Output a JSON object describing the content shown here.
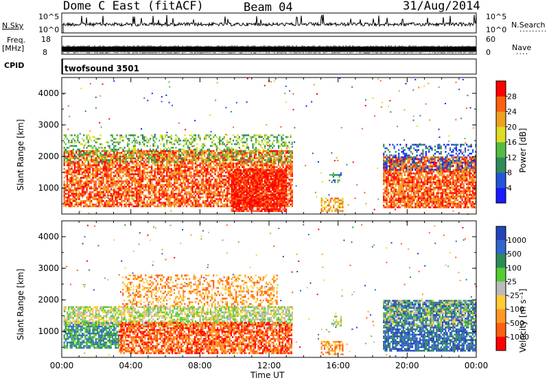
{
  "header": {
    "station": "Dome C East (fitACF)",
    "beam": "Beam 04",
    "date": "31/Aug/2014"
  },
  "top_panels": {
    "nsky_label": "N.Sky",
    "nsky_hi": "10^5",
    "nsky_lo": "10^0",
    "nsearch_hi": "10^5",
    "nsearch_lo": "10^0",
    "nsearch_label": "N.Search",
    "freq_label": "Freq.",
    "freq_unit": "[MHz]",
    "freq_hi": "18",
    "freq_lo": "8",
    "nave_hi": "60",
    "nave_lo": "0",
    "nave_label": "Nave",
    "cpid_label": "CPID",
    "cpid_value": "twofsound 3501"
  },
  "chart_data": [
    {
      "type": "heatmap",
      "name": "power",
      "ylabel": "Slant Range [km]",
      "yticks": [
        1000,
        2000,
        3000,
        4000
      ],
      "ylim": [
        180,
        4500
      ],
      "xlim_hours": [
        0,
        24
      ],
      "colorbar": {
        "label": "Power [dB]",
        "ticks": [
          "4",
          "8",
          "12",
          "16",
          "20",
          "24",
          "28"
        ],
        "colors": [
          "#1a1aff",
          "#2255dd",
          "#2f8a5a",
          "#55bb44",
          "#dddd22",
          "#f0a020",
          "#ff6010",
          "#ff0000"
        ]
      },
      "regions": [
        {
          "t0": 0.1,
          "t1": 13.3,
          "r0": 400,
          "r1": 2200,
          "level": 6,
          "density": 0.75
        },
        {
          "t0": 0.1,
          "t1": 13.3,
          "r0": 1800,
          "r1": 2700,
          "level": 3,
          "density": 0.35
        },
        {
          "t0": 9.8,
          "t1": 13.0,
          "r0": 300,
          "r1": 1600,
          "level": 7,
          "density": 0.85
        },
        {
          "t0": 15.0,
          "t1": 16.3,
          "r0": 300,
          "r1": 700,
          "level": 5,
          "density": 0.5
        },
        {
          "t0": 15.6,
          "t1": 16.2,
          "r0": 1200,
          "r1": 1500,
          "level": 2,
          "density": 0.5
        },
        {
          "t0": 18.6,
          "t1": 24.0,
          "r0": 400,
          "r1": 2000,
          "level": 6,
          "density": 0.8
        },
        {
          "t0": 18.6,
          "t1": 24.0,
          "r0": 1600,
          "r1": 2400,
          "level": 1,
          "density": 0.35
        }
      ]
    },
    {
      "type": "heatmap",
      "name": "velocity",
      "ylabel": "Slant Range [km]",
      "yticks": [
        1000,
        2000,
        3000,
        4000
      ],
      "ylim": [
        180,
        4500
      ],
      "xlim_hours": [
        0,
        24
      ],
      "xticks": [
        "00:00",
        "04:00",
        "08:00",
        "12:00",
        "16:00",
        "20:00",
        "00:00"
      ],
      "xlabel": "Time UT",
      "colorbar": {
        "label": "Velocity [m s⁻¹]",
        "ticks": [
          "1000",
          "500",
          "100",
          "25",
          "-25",
          "-100",
          "-500",
          "-1000"
        ],
        "colors": [
          "#2244bb",
          "#3366cc",
          "#2e8b57",
          "#55cc33",
          "#bbbbbb",
          "#ffcc33",
          "#ff9922",
          "#ff6010",
          "#ff0000"
        ]
      },
      "regions": [
        {
          "t0": 0.1,
          "t1": 3.3,
          "r0": 500,
          "r1": 1300,
          "level": 2,
          "density": 0.8
        },
        {
          "t0": 0.1,
          "t1": 13.3,
          "r0": 1200,
          "r1": 1800,
          "level": 4,
          "density": 0.7
        },
        {
          "t0": 3.3,
          "t1": 13.3,
          "r0": 300,
          "r1": 1300,
          "level": 7,
          "density": 0.75
        },
        {
          "t0": 3.5,
          "t1": 12.5,
          "r0": 1800,
          "r1": 2800,
          "level": 6,
          "density": 0.35
        },
        {
          "t0": 15.0,
          "t1": 16.3,
          "r0": 300,
          "r1": 700,
          "level": 6,
          "density": 0.5
        },
        {
          "t0": 15.6,
          "t1": 16.2,
          "r0": 1200,
          "r1": 1500,
          "level": 4,
          "density": 0.5
        },
        {
          "t0": 18.6,
          "t1": 24.0,
          "r0": 400,
          "r1": 2000,
          "level": 1,
          "density": 0.8
        },
        {
          "t0": 18.6,
          "t1": 24.0,
          "r0": 1200,
          "r1": 2000,
          "level": 4,
          "density": 0.4
        }
      ]
    }
  ]
}
